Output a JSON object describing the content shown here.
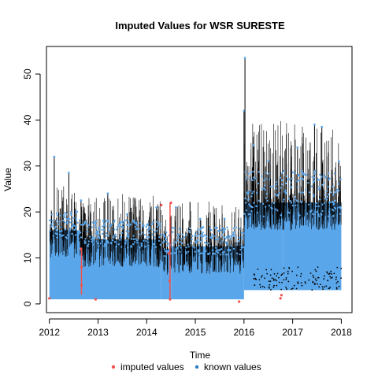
{
  "chart_data": {
    "type": "scatter",
    "title": "Imputed Values for  WSR SURESTE",
    "xlabel": "Time",
    "ylabel": "Value",
    "xlim": [
      2011.94,
      2018.22
    ],
    "ylim": [
      -1.9,
      56
    ],
    "x_ticks": [
      "2012",
      "2013",
      "2014",
      "2015",
      "2016",
      "2017",
      "2018"
    ],
    "y_ticks": [
      "0",
      "10",
      "20",
      "30",
      "40",
      "50"
    ],
    "legend": {
      "placement": "bottom",
      "entries": [
        {
          "label": "imputed values",
          "color": "#ef5350"
        },
        {
          "label": "known values",
          "color": "#5aa6ea"
        }
      ]
    },
    "series": [
      {
        "name": "known values",
        "color": "#5aa6ea",
        "segments": [
          {
            "x": [
              2012.0,
              2012.67
            ],
            "low": 1.0,
            "high": 16.0
          },
          {
            "x": [
              2012.67,
              2014.3
            ],
            "low": 1.0,
            "high": 14.0
          },
          {
            "x": [
              2014.3,
              2014.5
            ],
            "low": 1.0,
            "high": 12.0
          },
          {
            "x": [
              2014.5,
              2016.0
            ],
            "low": 1.0,
            "high": 12.5
          },
          {
            "x": [
              2016.0,
              2016.8
            ],
            "low": 3.0,
            "high": 22.0
          },
          {
            "x": [
              2016.8,
              2018.0
            ],
            "low": 3.0,
            "high": 22.0
          }
        ],
        "peaks": [
          [
            2012.1,
            32
          ],
          [
            2012.4,
            28.5
          ],
          [
            2012.65,
            22.5
          ],
          [
            2013.2,
            24
          ],
          [
            2013.6,
            19.5
          ],
          [
            2014.2,
            21
          ],
          [
            2014.6,
            21
          ],
          [
            2015.1,
            18.5
          ],
          [
            2015.6,
            18.5
          ],
          [
            2016.0,
            42
          ],
          [
            2016.02,
            53.5
          ],
          [
            2016.2,
            34.5
          ],
          [
            2016.5,
            31
          ],
          [
            2017.1,
            34
          ],
          [
            2017.45,
            39
          ],
          [
            2017.6,
            38.5
          ],
          [
            2017.95,
            31
          ]
        ]
      },
      {
        "name": "imputed values",
        "color": "#ef5350",
        "points": [
          [
            2012.0,
            1.2
          ],
          [
            2012.65,
            12
          ],
          [
            2012.66,
            8
          ],
          [
            2012.66,
            4
          ],
          [
            2012.95,
            1.0
          ],
          [
            2014.3,
            21.5
          ],
          [
            2014.45,
            11
          ],
          [
            2014.47,
            5
          ],
          [
            2014.48,
            1.0
          ],
          [
            2014.5,
            22
          ],
          [
            2015.9,
            0.5
          ],
          [
            2016.75,
            1.2
          ],
          [
            2016.77,
            1.9
          ]
        ]
      }
    ],
    "grid": false
  }
}
